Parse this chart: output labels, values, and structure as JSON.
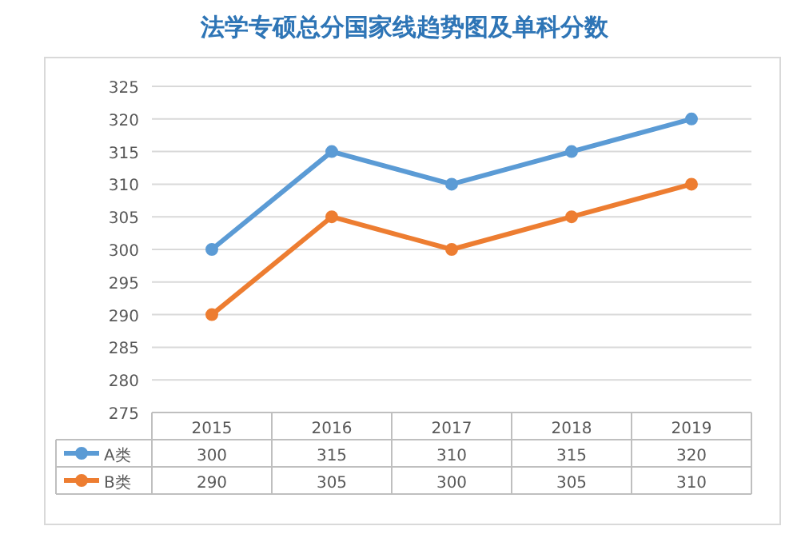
{
  "chart_data": {
    "type": "line",
    "title": "法学专硕总分国家线趋势图及单科分数",
    "categories": [
      "2015",
      "2016",
      "2017",
      "2018",
      "2019"
    ],
    "series": [
      {
        "name": "A类",
        "color": "#5b9bd5",
        "values": [
          300,
          315,
          310,
          315,
          320
        ]
      },
      {
        "name": "B类",
        "color": "#ed7d31",
        "values": [
          290,
          305,
          300,
          305,
          310
        ]
      }
    ],
    "ylim": [
      275,
      325
    ],
    "yticks": [
      275,
      280,
      285,
      290,
      295,
      300,
      305,
      310,
      315,
      320,
      325
    ],
    "grid": "y",
    "legend": "bottom left",
    "marker": "circle",
    "data_labels": true
  }
}
